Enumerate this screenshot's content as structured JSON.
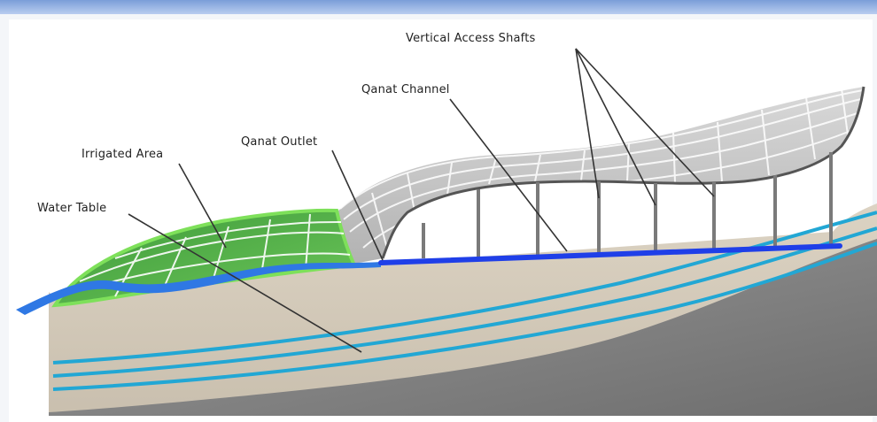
{
  "diagram": {
    "labels": {
      "vertical_access_shafts": "Vertical Access Shafts",
      "qanat_channel": "Qanat Channel",
      "qanat_outlet": "Qanat Outlet",
      "irrigated_area": "Irrigated Area",
      "water_table": "Water Table"
    },
    "colors": {
      "header_bar": "#8fb0e4",
      "soil": "#d4cbbb",
      "bedrock": "#8a8a8a",
      "surface_grid": "#b9b9b9",
      "irrigated_green": "#5fb84f",
      "irrigated_edge": "#7ee05a",
      "water_blue": "#2f78e4",
      "channel_blue": "#1f3fe8",
      "aquifer_cyan": "#22a7d4",
      "shaft": "#7a7a7a"
    }
  }
}
